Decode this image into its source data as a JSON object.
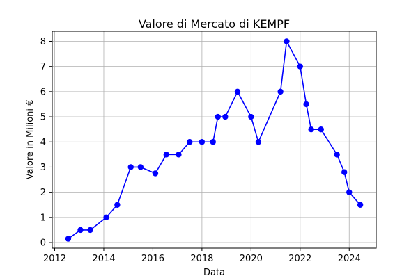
{
  "chart_data": {
    "type": "line",
    "title": "Valore di Mercato di KEMPF",
    "xlabel": "Data",
    "ylabel": "Valore in Milioni €",
    "x_ticks": [
      2012,
      2014,
      2016,
      2018,
      2020,
      2022,
      2024
    ],
    "y_ticks": [
      0,
      1,
      2,
      3,
      4,
      5,
      6,
      7,
      8
    ],
    "xlim": [
      2011.9,
      2025.1
    ],
    "ylim": [
      -0.22,
      8.4
    ],
    "grid": true,
    "line_color": "#0000ff",
    "series": [
      {
        "x": [
          "2012-07",
          "2013-01",
          "2013-07",
          "2014-02",
          "2014-07",
          "2015-02",
          "2015-06",
          "2016-02",
          "2016-07",
          "2017-02",
          "2017-07",
          "2018-02",
          "2018-07",
          "2018-09",
          "2019-01",
          "2019-07",
          "2020-01",
          "2020-04",
          "2021-03",
          "2021-06",
          "2022-01",
          "2022-04",
          "2022-06",
          "2022-11",
          "2023-07",
          "2023-10",
          "2024-01",
          "2024-06"
        ],
        "x_numeric": [
          2012.55,
          2013.05,
          2013.45,
          2014.1,
          2014.55,
          2015.1,
          2015.5,
          2016.1,
          2016.55,
          2017.05,
          2017.5,
          2018.0,
          2018.45,
          2018.65,
          2018.95,
          2019.45,
          2020.0,
          2020.3,
          2021.2,
          2021.45,
          2022.0,
          2022.25,
          2022.45,
          2022.85,
          2023.5,
          2023.8,
          2024.0,
          2024.45
        ],
        "values": [
          0.15,
          0.5,
          0.5,
          1.0,
          1.5,
          3.0,
          3.0,
          2.75,
          3.5,
          3.5,
          4.0,
          4.0,
          4.0,
          5.0,
          5.0,
          6.0,
          5.0,
          4.0,
          6.0,
          8.0,
          7.0,
          5.5,
          4.5,
          4.5,
          3.5,
          2.8,
          2.0,
          1.5
        ]
      }
    ]
  }
}
